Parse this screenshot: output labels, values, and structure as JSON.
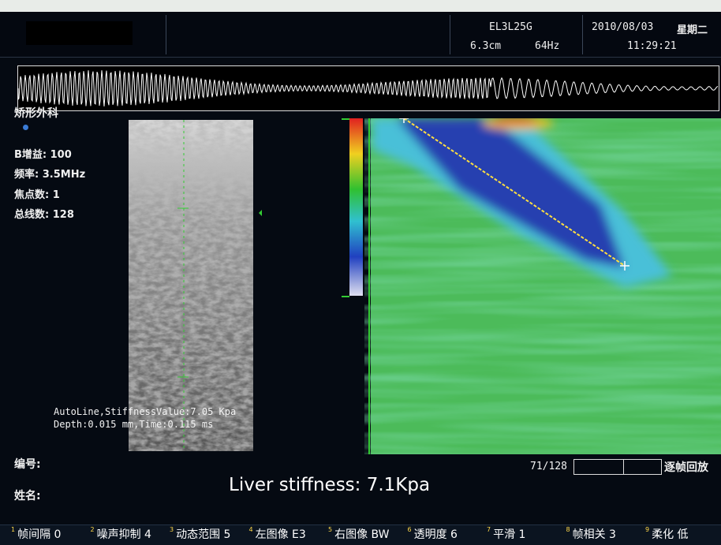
{
  "header": {
    "probe": "EL3L25G",
    "depth": "6.3cm",
    "frequency": "64Hz",
    "date": "2010/08/03",
    "weekday": "星期二",
    "time": "11:29:21"
  },
  "left_panel": {
    "department": "矫形外科",
    "params": [
      "B增益: 100",
      "频率: 3.5MHz",
      "焦点数: 1",
      "总线数: 128"
    ]
  },
  "overlay": {
    "line1": "AutoLine,StiffnessValue:7.05 Kpa",
    "line2": "Depth:0.015 mm,Time:0.115 ms"
  },
  "patient": {
    "id_label": "编号:",
    "name_label": "姓名:"
  },
  "result": "Liver stiffness: 7.1Kpa",
  "playback": {
    "frame": "71/128",
    "label": "逐帧回放"
  },
  "menu": [
    {
      "key": "1",
      "label": "帧间隔 0"
    },
    {
      "key": "2",
      "label": "噪声抑制 4"
    },
    {
      "key": "3",
      "label": "动态范围 5"
    },
    {
      "key": "4",
      "label": "左图像 E3"
    },
    {
      "key": "5",
      "label": "右图像 BW"
    },
    {
      "key": "6",
      "label": "透明度 6"
    },
    {
      "key": "7",
      "label": "平滑 1"
    },
    {
      "key": "8",
      "label": "帧相关 3"
    },
    {
      "key": "9",
      "label": "柔化 低"
    }
  ]
}
